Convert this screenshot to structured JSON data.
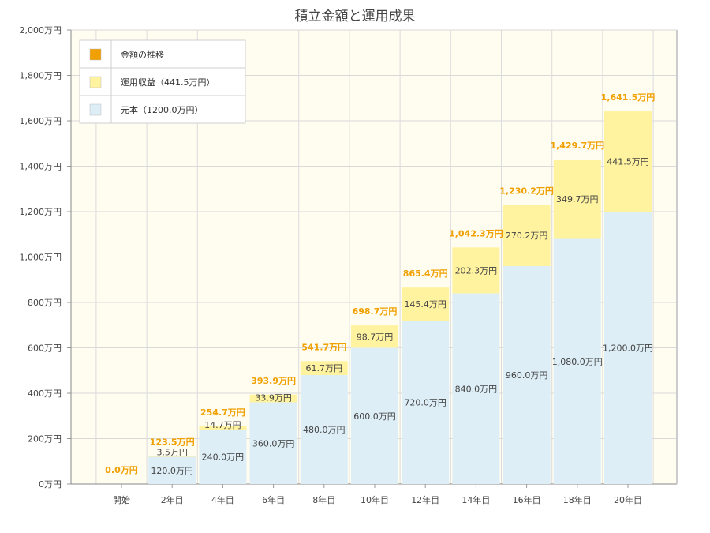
{
  "chart_data": {
    "type": "bar",
    "stacked": true,
    "title": "積立金額と運用成果",
    "categories": [
      "開始",
      "2年目",
      "4年目",
      "6年目",
      "8年目",
      "10年目",
      "12年目",
      "14年目",
      "16年目",
      "18年目",
      "20年目"
    ],
    "ylim": [
      0,
      2000
    ],
    "yticks": [
      "0万円",
      "200万円",
      "400万円",
      "600万円",
      "800万円",
      "1,000万円",
      "1,200万円",
      "1,400万円",
      "1,600万円",
      "1,800万円",
      "2,000万円"
    ],
    "grid": true,
    "legend_position": "top-left",
    "legend": [
      {
        "label": "金額の推移",
        "color": "#f0a000"
      },
      {
        "label": "運用収益（441.5万円）",
        "color": "#fff3a0"
      },
      {
        "label": "元本（1200.0万円）",
        "color": "#ddeef7"
      }
    ],
    "series": [
      {
        "name": "元本（1200.0万円）",
        "color": "#ddeef7",
        "values": [
          0,
          120.0,
          240.0,
          360.0,
          480.0,
          600.0,
          720.0,
          840.0,
          960.0,
          1080.0,
          1200.0
        ],
        "labels": [
          "",
          "120.0万円",
          "240.0万円",
          "360.0万円",
          "480.0万円",
          "600.0万円",
          "720.0万円",
          "840.0万円",
          "960.0万円",
          "1,080.0万円",
          "1,200.0万円"
        ]
      },
      {
        "name": "運用収益（441.5万円）",
        "color": "#fff3a0",
        "values": [
          0,
          3.5,
          14.7,
          33.9,
          61.7,
          98.7,
          145.4,
          202.3,
          270.2,
          349.7,
          441.5
        ],
        "labels": [
          "",
          "3.5万円",
          "14.7万円",
          "33.9万円",
          "61.7万円",
          "98.7万円",
          "145.4万円",
          "202.3万円",
          "270.2万円",
          "349.7万円",
          "441.5万円"
        ]
      }
    ],
    "totals": {
      "name": "金額の推移",
      "color": "#f0a000",
      "values": [
        0.0,
        123.5,
        254.7,
        393.9,
        541.7,
        698.7,
        865.4,
        1042.3,
        1230.2,
        1429.7,
        1641.5
      ],
      "labels": [
        "0.0万円",
        "123.5万円",
        "254.7万円",
        "393.9万円",
        "541.7万円",
        "698.7万円",
        "865.4万円",
        "1,042.3万円",
        "1,230.2万円",
        "1,429.7万円",
        "1,641.5万円"
      ]
    }
  }
}
